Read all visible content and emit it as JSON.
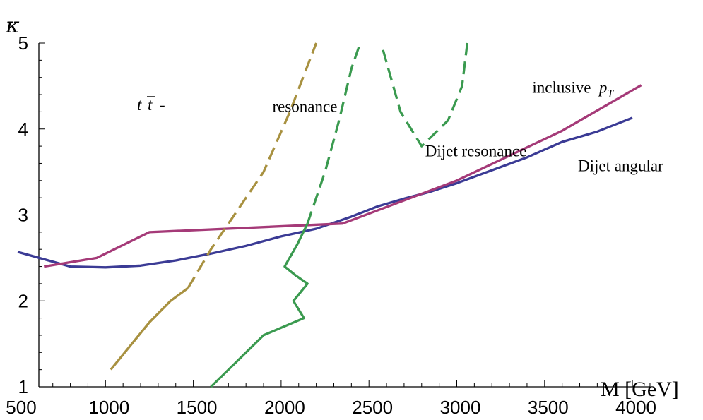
{
  "chart_data": {
    "type": "line",
    "xlabel": "M [GeV]",
    "ylabel": "κ",
    "xlim": [
      500,
      4100
    ],
    "ylim": [
      1,
      5
    ],
    "x_ticks": [
      500,
      1000,
      1500,
      2000,
      2500,
      3000,
      3500,
      4000
    ],
    "y_ticks": [
      1,
      2,
      3,
      4,
      5
    ],
    "grid": false,
    "series": [
      {
        "name": "Dijet angular",
        "color": "#3b3b95",
        "style": "solid",
        "points": [
          [
            500,
            2.57
          ],
          [
            800,
            2.4
          ],
          [
            1000,
            2.39
          ],
          [
            1200,
            2.41
          ],
          [
            1400,
            2.47
          ],
          [
            1600,
            2.55
          ],
          [
            1800,
            2.64
          ],
          [
            2000,
            2.75
          ],
          [
            2200,
            2.84
          ],
          [
            2400,
            2.98
          ],
          [
            2550,
            3.1
          ],
          [
            2700,
            3.19
          ],
          [
            2850,
            3.27
          ],
          [
            3000,
            3.37
          ],
          [
            3200,
            3.52
          ],
          [
            3400,
            3.67
          ],
          [
            3600,
            3.85
          ],
          [
            3800,
            3.97
          ],
          [
            4000,
            4.13
          ]
        ]
      },
      {
        "name": "inclusive p_T",
        "color": "#a53a78",
        "style": "solid",
        "points": [
          [
            650,
            2.4
          ],
          [
            950,
            2.5
          ],
          [
            1250,
            2.8
          ],
          [
            2350,
            2.9
          ],
          [
            3000,
            3.4
          ],
          [
            3600,
            3.98
          ],
          [
            4050,
            4.51
          ]
        ]
      },
      {
        "name": "t t̄ - resonance",
        "color": "#a89140",
        "segments": [
          {
            "style": "solid",
            "points": [
              [
                1030,
                1.2
              ],
              [
                1150,
                1.5
              ],
              [
                1250,
                1.75
              ],
              [
                1370,
                2.0
              ],
              [
                1470,
                2.15
              ]
            ]
          },
          {
            "style": "dashed",
            "points": [
              [
                1470,
                2.15
              ],
              [
                1600,
                2.6
              ],
              [
                1750,
                3.05
              ],
              [
                1900,
                3.5
              ],
              [
                2050,
                4.2
              ],
              [
                2200,
                5.0
              ]
            ]
          }
        ]
      },
      {
        "name": "Dijet resonance",
        "color": "#3a9a4f",
        "segments": [
          {
            "style": "solid",
            "points": [
              [
                1600,
                1.0
              ],
              [
                1750,
                1.3
              ],
              [
                1900,
                1.6
              ],
              [
                2130,
                1.8
              ],
              [
                2070,
                2.0
              ],
              [
                2150,
                2.2
              ],
              [
                2080,
                2.3
              ],
              [
                2020,
                2.4
              ],
              [
                2090,
                2.65
              ],
              [
                2150,
                2.9
              ]
            ]
          },
          {
            "style": "dashed",
            "points": [
              [
                2150,
                2.9
              ],
              [
                2250,
                3.5
              ],
              [
                2330,
                4.1
              ],
              [
                2400,
                4.7
              ],
              [
                2450,
                5.0
              ]
            ]
          },
          {
            "style": "dashed",
            "points": [
              [
                2580,
                4.92
              ],
              [
                2680,
                4.2
              ],
              [
                2800,
                3.8
              ],
              [
                2950,
                4.1
              ],
              [
                3030,
                4.5
              ],
              [
                3060,
                5.0
              ]
            ]
          }
        ]
      }
    ],
    "annotations": [
      {
        "text": "resonance",
        "x": 1950,
        "y": 4.2
      },
      {
        "text": "Dijet resonance",
        "x": 2820,
        "y": 3.68
      },
      {
        "text": "inclusive",
        "x": 3430,
        "y": 4.42
      },
      {
        "text": "p",
        "sub": "T",
        "x": 3810,
        "y": 4.42
      },
      {
        "text": "Dijet angular",
        "x": 3690,
        "y": 3.51
      }
    ]
  }
}
